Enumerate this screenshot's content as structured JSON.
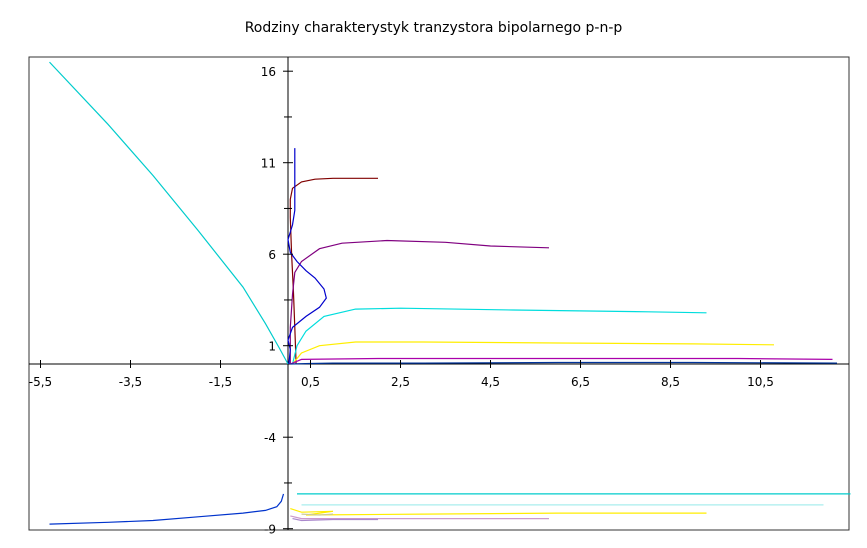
{
  "chart_data": {
    "type": "line",
    "title": "Rodziny charakterystyk tranzystora bipolarnego p-n-p",
    "xlabel": "",
    "ylabel": "",
    "xlim": [
      -5.5,
      12.5
    ],
    "ylim": [
      -9,
      17
    ],
    "grid": false,
    "x_ticks": [
      {
        "v": -5.5,
        "label": "-5,5"
      },
      {
        "v": -3.5,
        "label": "-3,5"
      },
      {
        "v": -1.5,
        "label": "-1,5"
      },
      {
        "v": 0.5,
        "label": "0,5"
      },
      {
        "v": 2.5,
        "label": "2,5"
      },
      {
        "v": 4.5,
        "label": "4,5"
      },
      {
        "v": 6.5,
        "label": "6,5"
      },
      {
        "v": 8.5,
        "label": "8,5"
      },
      {
        "v": 10.5,
        "label": "10,5"
      }
    ],
    "y_ticks": [
      {
        "v": 16,
        "label": "16"
      },
      {
        "v": 11,
        "label": "11"
      },
      {
        "v": 6,
        "label": "6"
      },
      {
        "v": 1,
        "label": "1"
      },
      {
        "v": -4,
        "label": "-4"
      },
      {
        "v": -9,
        "label": "-9"
      }
    ],
    "y_minor_ticks": [
      13.5,
      8.5,
      3.5,
      -6.5
    ],
    "series": [
      {
        "color": "#800000",
        "points": [
          [
            0.18,
            0
          ],
          [
            0.15,
            2
          ],
          [
            0.12,
            4
          ],
          [
            0.08,
            6
          ],
          [
            0.05,
            8
          ],
          [
            0.05,
            9
          ],
          [
            0.1,
            9.6
          ],
          [
            0.3,
            9.95
          ],
          [
            0.6,
            10.1
          ],
          [
            1,
            10.15
          ],
          [
            2,
            10.15
          ]
        ]
      },
      {
        "color": "#800080",
        "points": [
          [
            0.05,
            0
          ],
          [
            0.05,
            2
          ],
          [
            0.1,
            3.8
          ],
          [
            0.15,
            5
          ],
          [
            0.3,
            5.6
          ],
          [
            0.7,
            6.3
          ],
          [
            1.2,
            6.6
          ],
          [
            2.2,
            6.75
          ],
          [
            3.5,
            6.65
          ],
          [
            4.5,
            6.45
          ],
          [
            5.8,
            6.35
          ]
        ]
      },
      {
        "color": "#00cccc",
        "points": [
          [
            -5.3,
            16.5
          ],
          [
            -4,
            13.1
          ],
          [
            -3,
            10.3
          ],
          [
            -2,
            7.3
          ],
          [
            -1,
            4.2
          ],
          [
            -0.5,
            2.2
          ],
          [
            -0.2,
            0.9
          ],
          [
            0,
            0
          ]
        ]
      },
      {
        "color": "#00dddd",
        "points": [
          [
            0.1,
            0
          ],
          [
            0.2,
            1
          ],
          [
            0.4,
            1.8
          ],
          [
            0.8,
            2.6
          ],
          [
            1.5,
            3.0
          ],
          [
            2.5,
            3.05
          ],
          [
            5,
            2.95
          ],
          [
            8,
            2.85
          ],
          [
            9.3,
            2.8
          ]
        ]
      },
      {
        "color": "#ffee00",
        "points": [
          [
            0.1,
            0
          ],
          [
            0.3,
            0.6
          ],
          [
            0.7,
            1.0
          ],
          [
            1.5,
            1.2
          ],
          [
            3,
            1.2
          ],
          [
            6,
            1.15
          ],
          [
            9,
            1.1
          ],
          [
            10.8,
            1.05
          ]
        ]
      },
      {
        "color": "#aa00aa",
        "points": [
          [
            0.05,
            0
          ],
          [
            0.3,
            0.25
          ],
          [
            2,
            0.3
          ],
          [
            6,
            0.3
          ],
          [
            10,
            0.3
          ],
          [
            12.1,
            0.25
          ]
        ]
      },
      {
        "color": "#003399",
        "points": [
          [
            0.05,
            0
          ],
          [
            0.5,
            0.03
          ],
          [
            1,
            0.05
          ],
          [
            3,
            0.05
          ],
          [
            6,
            0.08
          ],
          [
            9,
            0.08
          ],
          [
            12.2,
            0.05
          ]
        ]
      },
      {
        "color": "#0000cc",
        "points": [
          [
            0.02,
            0
          ],
          [
            0.05,
            0.8
          ],
          [
            0,
            1.3
          ],
          [
            0.1,
            2
          ],
          [
            0.4,
            2.6
          ],
          [
            0.7,
            3.1
          ],
          [
            0.85,
            3.6
          ],
          [
            0.8,
            4.1
          ],
          [
            0.6,
            4.7
          ],
          [
            0.4,
            5.1
          ],
          [
            0.2,
            5.6
          ],
          [
            0.05,
            6.1
          ],
          [
            0.0,
            6.8
          ],
          [
            0.1,
            7.6
          ],
          [
            0.15,
            8.4
          ],
          [
            0.15,
            9.2
          ],
          [
            0.15,
            10.2
          ],
          [
            0.15,
            11.3
          ],
          [
            0.15,
            11.8
          ]
        ]
      },
      {
        "color": "#0033cc",
        "points": [
          [
            -5.3,
            -8.75
          ],
          [
            -4,
            -8.65
          ],
          [
            -3,
            -8.55
          ],
          [
            -2,
            -8.35
          ],
          [
            -1,
            -8.15
          ],
          [
            -0.5,
            -8.0
          ],
          [
            -0.25,
            -7.8
          ],
          [
            -0.15,
            -7.5
          ],
          [
            -0.1,
            -7.1
          ]
        ]
      },
      {
        "color": "#00cccc",
        "points": [
          [
            0.2,
            -7.1
          ],
          [
            12.5,
            -7.1
          ]
        ]
      },
      {
        "color": "#aaeeee",
        "points": [
          [
            0.3,
            -7.7
          ],
          [
            11.9,
            -7.7
          ]
        ]
      },
      {
        "color": "#ffee00",
        "points": [
          [
            0.05,
            -7.9
          ],
          [
            0.3,
            -8.1
          ],
          [
            1,
            -8.05
          ],
          [
            0.4,
            -8.25
          ],
          [
            3,
            -8.2
          ],
          [
            6,
            -8.15
          ],
          [
            9.3,
            -8.15
          ]
        ]
      },
      {
        "color": "#cccc99",
        "points": [
          [
            0.3,
            -8.2
          ],
          [
            0.7,
            -8.25
          ],
          [
            1,
            -8.2
          ]
        ]
      },
      {
        "color": "#cc99cc",
        "points": [
          [
            0.05,
            -8.3
          ],
          [
            0.3,
            -8.45
          ],
          [
            2,
            -8.45
          ],
          [
            5.8,
            -8.45
          ]
        ]
      },
      {
        "color": "#aa88cc",
        "points": [
          [
            0.1,
            -8.45
          ],
          [
            0.3,
            -8.55
          ],
          [
            1,
            -8.5
          ],
          [
            2,
            -8.5
          ]
        ]
      }
    ]
  }
}
